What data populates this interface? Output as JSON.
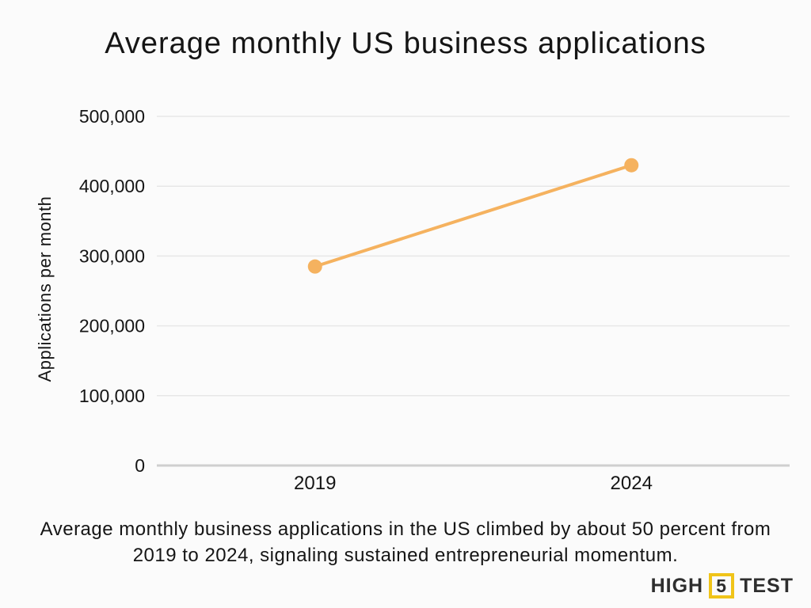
{
  "chart": {
    "title": "Average monthly US business applications"
  },
  "chart_data": {
    "type": "line",
    "categories": [
      "2019",
      "2024"
    ],
    "values": [
      285000,
      430000
    ],
    "title": "Average monthly US business applications",
    "xlabel": "",
    "ylabel": "Applications per month",
    "ylim": [
      0,
      500000
    ],
    "ytick_step": 100000,
    "ytick_labels": [
      "0",
      "100,000",
      "200,000",
      "300,000",
      "400,000",
      "500,000"
    ],
    "grid": true,
    "legend": false,
    "line_color": "#F5B25F",
    "marker_color": "#F5B25F",
    "grid_color": "#E7E7E7",
    "axis_line_color": "#CFCFCF",
    "text_color": "#151515",
    "background_color": "#FBFBFB"
  },
  "caption": {
    "text": "Average monthly business applications in the US climbed by about 50 percent from 2019 to 2024, signaling sustained entrepreneurial momentum."
  },
  "logo": {
    "high": "HIGH",
    "five": "5",
    "test": "TEST",
    "box_color": "#F0C419",
    "text_color": "#2E2E2E"
  }
}
